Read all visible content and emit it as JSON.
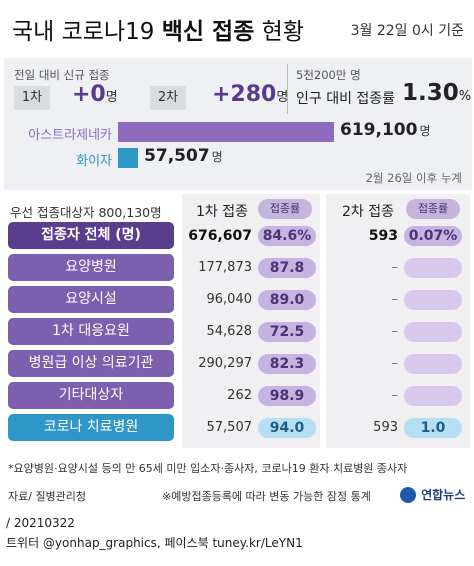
{
  "header": {
    "title_prefix": "국내 코로나19 ",
    "title_bold": "백신 접종",
    "title_suffix": " 현황",
    "date": "3월 22일 0시 기준"
  },
  "new_doses": {
    "caption": "전일 대비 신규 접종",
    "dose1_label": "1차",
    "dose1_value": "+0",
    "dose2_label": "2차",
    "dose2_value": "+280",
    "unit": "명"
  },
  "rate": {
    "caption": "5천200만 명",
    "label": "인구 대비 접종률",
    "value": "1.30",
    "unit": "%"
  },
  "vaccines": {
    "items": [
      {
        "name": "아스트라제네카",
        "value": "619,100",
        "unit": "명",
        "amount": 619100,
        "color": "#8e6cbd"
      },
      {
        "name": "화이자",
        "value": "57,507",
        "unit": "명",
        "amount": 57507,
        "color": "#2f96c8"
      }
    ],
    "note": "2월 26일 이후 누계"
  },
  "table": {
    "priority_caption": "우선 접종대상자 800,130명",
    "col1_label": "1차 접종",
    "col2_label": "2차 접종",
    "rate_label": "접종률",
    "rows": [
      {
        "name": "접종자 전체 (명)",
        "d1": "676,607",
        "r1": "84.6%",
        "d2": "593",
        "r2": "0.07%"
      },
      {
        "name": "요양병원",
        "d1": "177,873",
        "r1": "87.8",
        "d2": "–",
        "r2": ""
      },
      {
        "name": "요양시설",
        "d1": "96,040",
        "r1": "89.0",
        "d2": "–",
        "r2": ""
      },
      {
        "name": "1차 대응요원",
        "d1": "54,628",
        "r1": "72.5",
        "d2": "–",
        "r2": ""
      },
      {
        "name": "병원급 이상 의료기관",
        "d1": "290,297",
        "r1": "82.3",
        "d2": "–",
        "r2": ""
      },
      {
        "name": "기타대상자",
        "d1": "262",
        "r1": "98.9",
        "d2": "–",
        "r2": ""
      },
      {
        "name": "코로나 치료병원",
        "d1": "57,507",
        "r1": "94.0",
        "d2": "593",
        "r2": "1.0"
      }
    ]
  },
  "footer": {
    "note": "*요양병원·요양시설 등의 만 65세 미만 입소자·종사자, 코로나19 환자 치료병원 종사자",
    "source": "자료/ 질병관리청",
    "disclaimer": "※예방접종등록에 따라 변동 가능한 잠정 통계",
    "logo_text": "연합뉴스",
    "id_line": "/ 20210322",
    "social": "트위터 @yonhap_graphics, 페이스북 tuney.kr/LeYN1"
  }
}
